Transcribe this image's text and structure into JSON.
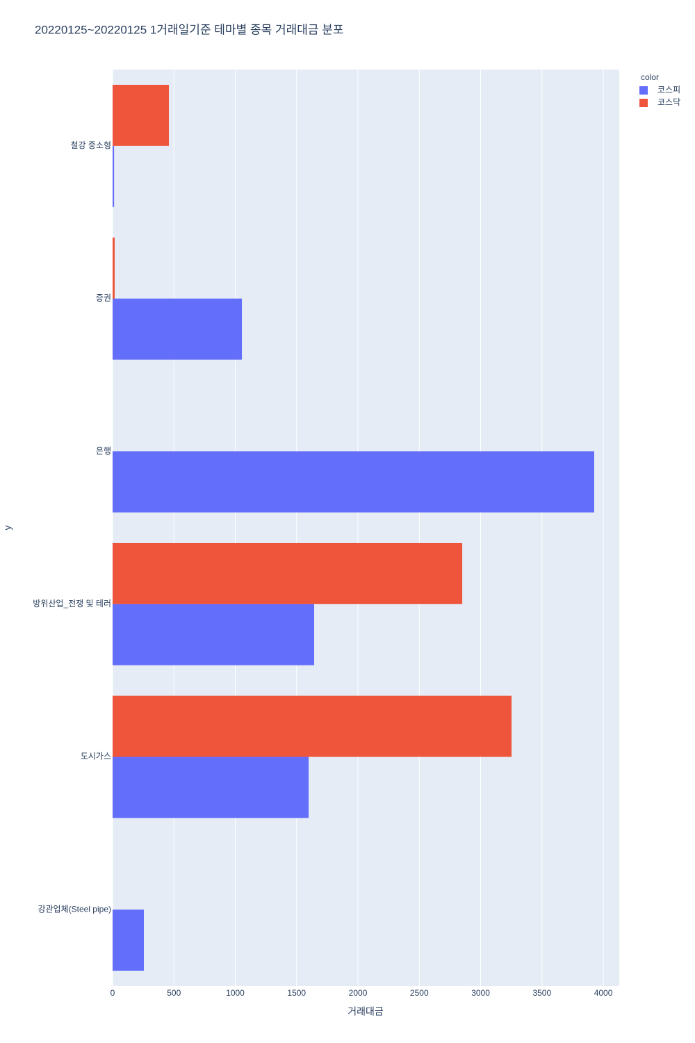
{
  "chart_data": {
    "type": "bar",
    "orientation": "horizontal",
    "barmode": "group",
    "title": "20220125~20220125 1거래일기준 테마별 종목 거래대금 분포",
    "x_label": "거래대금",
    "y_label": "y",
    "legend_title": "color",
    "categories": [
      "강관업체(Steel pipe)",
      "도시가스",
      "방위산업_전쟁 및 테러",
      "은행",
      "증권",
      "철강 중소형"
    ],
    "series": [
      {
        "name": "코스피",
        "color": "#636efa",
        "values": [
          255,
          1598,
          1643,
          3926,
          1054,
          12
        ]
      },
      {
        "name": "코스닥",
        "color": "#ef553b",
        "values": [
          null,
          3252,
          2850,
          null,
          17,
          459
        ]
      }
    ],
    "xlim": [
      0,
      4130
    ],
    "xticks": [
      0,
      500,
      1000,
      1500,
      2000,
      2500,
      3000,
      3500,
      4000
    ],
    "grid": true,
    "legend_position": "right",
    "background": "#e5ecf6"
  }
}
